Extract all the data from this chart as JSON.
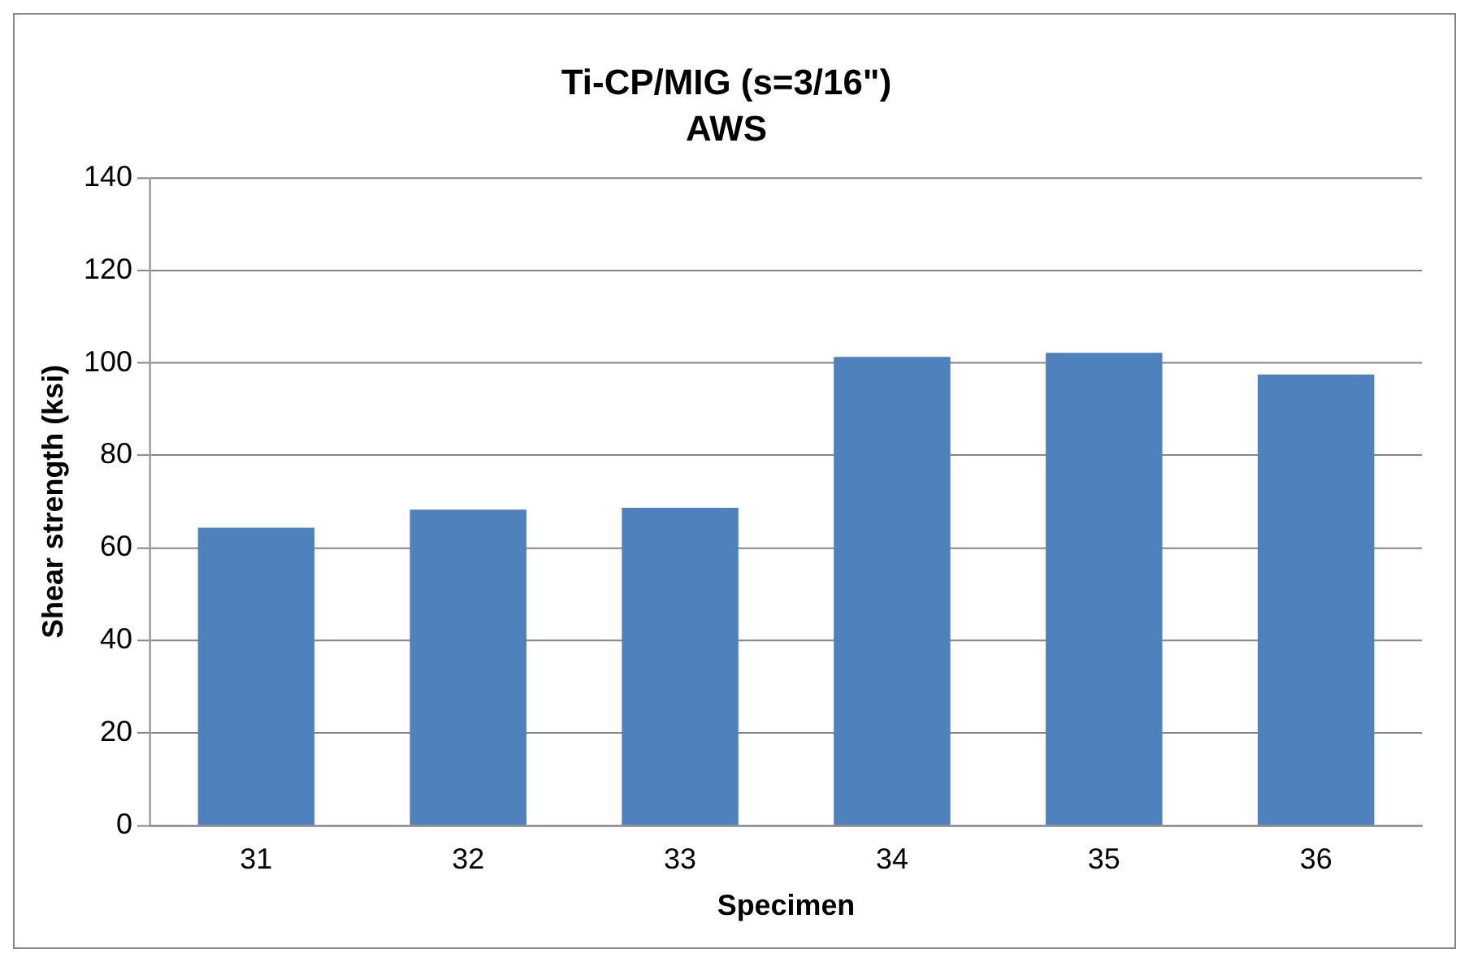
{
  "chart_data": {
    "type": "bar",
    "title": "Ti-CP/MIG (s=3/16\")",
    "subtitle": "AWS",
    "xlabel": "Specimen",
    "ylabel": "Shear strength (ksi)",
    "categories": [
      "31",
      "32",
      "33",
      "34",
      "35",
      "36"
    ],
    "values": [
      64.4,
      68.3,
      68.7,
      101.3,
      102.2,
      97.5
    ],
    "color": "#4f81bd",
    "ylim": [
      0,
      140
    ],
    "yticks": [
      0,
      20,
      40,
      60,
      80,
      100,
      120,
      140
    ],
    "grid": "y",
    "legend": false
  }
}
